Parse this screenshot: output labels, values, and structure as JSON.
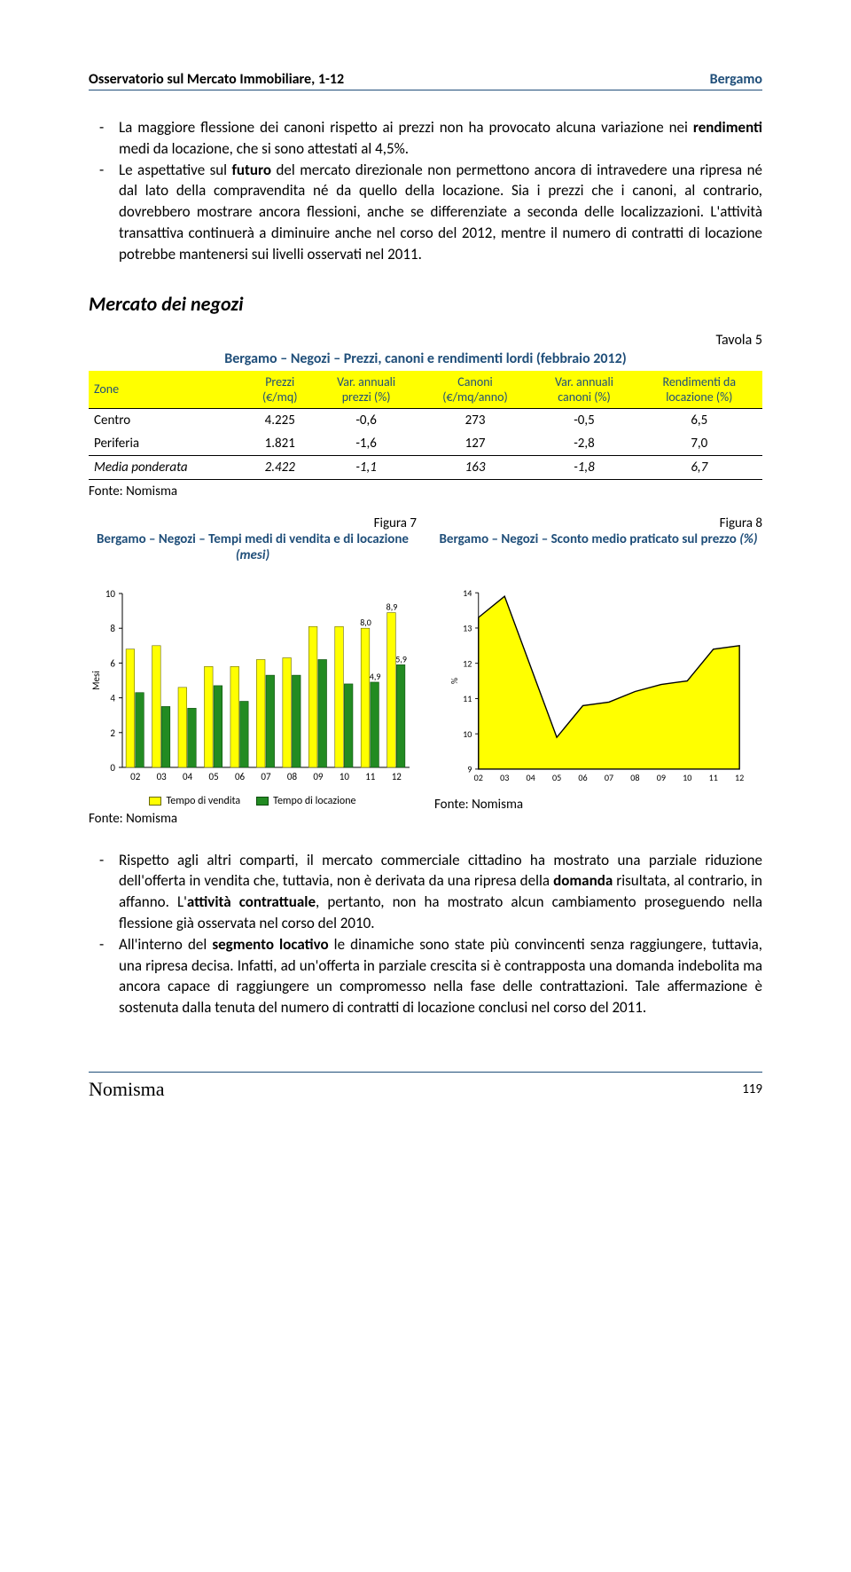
{
  "header": {
    "left": "Osservatorio sul Mercato Immobiliare, 1-12",
    "right": "Bergamo"
  },
  "para1_a": "La maggiore flessione dei canoni rispetto ai prezzi non ha provocato alcuna variazione nei ",
  "para1_b": "rendimenti",
  "para1_c": " medi da locazione, che si sono attestati al 4,5%.",
  "para2_a": "Le aspettative sul ",
  "para2_b": "futuro",
  "para2_c": " del mercato direzionale non permettono ancora di intravedere una ripresa né dal lato della compravendita né da quello della locazione. Sia i prezzi che i canoni, al contrario, dovrebbero mostrare ancora flessioni, anche se differenziate a seconda delle localizzazioni. L'attività transattiva continuerà a diminuire anche nel corso del 2012, mentre il numero di contratti di locazione potrebbe mantenersi sui livelli osservati nel 2011.",
  "section_title": "Mercato dei negozi",
  "tavola_label": "Tavola 5",
  "table_title": "Bergamo – Negozi – Prezzi, canoni e rendimenti lordi (febbraio 2012)",
  "table": {
    "headers": [
      {
        "l1": "Zone",
        "l2": ""
      },
      {
        "l1": "Prezzi",
        "l2": "(€/mq)"
      },
      {
        "l1": "Var. annuali",
        "l2": "prezzi (%)"
      },
      {
        "l1": "Canoni",
        "l2": "(€/mq/anno)"
      },
      {
        "l1": "Var. annuali",
        "l2": "canoni (%)"
      },
      {
        "l1": "Rendimenti da",
        "l2": "locazione (%)"
      }
    ],
    "rows": [
      [
        "Centro",
        "4.225",
        "-0,6",
        "273",
        "-0,5",
        "6,5"
      ],
      [
        "Periferia",
        "1.821",
        "-1,6",
        "127",
        "-2,8",
        "7,0"
      ],
      [
        "Media ponderata",
        "2.422",
        "-1,1",
        "163",
        "-1,8",
        "6,7"
      ]
    ]
  },
  "fonte": "Fonte: Nomisma",
  "fig7": {
    "label": "Figura 7",
    "title_a": "Bergamo – Negozi – Tempi medi di vendita e di locazione ",
    "title_b": "(mesi)",
    "type": "grouped-bar",
    "ylabel": "Mesi",
    "ylim": [
      0,
      10
    ],
    "ytick_step": 2,
    "categories": [
      "02",
      "03",
      "04",
      "05",
      "06",
      "07",
      "08",
      "09",
      "10",
      "11",
      "12"
    ],
    "series": [
      {
        "name": "Tempo di vendita",
        "color": "#ffff00",
        "border": "#6a6a00",
        "values": [
          6.8,
          7.0,
          4.6,
          5.8,
          5.8,
          6.2,
          6.3,
          8.1,
          8.1,
          8.0,
          8.9
        ]
      },
      {
        "name": "Tempo di locazione",
        "color": "#228b22",
        "border": "#0d4d0d",
        "values": [
          4.3,
          3.5,
          3.4,
          4.7,
          3.8,
          5.3,
          5.3,
          6.2,
          4.8,
          4.9,
          5.9
        ]
      }
    ],
    "annotations": [
      {
        "text": "8,0",
        "cat_idx": 9,
        "series": 0,
        "y": 8.0
      },
      {
        "text": "8,9",
        "cat_idx": 10,
        "series": 0,
        "y": 8.9
      },
      {
        "text": "4,9",
        "cat_idx": 9,
        "series": 1,
        "y": 4.9
      },
      {
        "text": "5,9",
        "cat_idx": 10,
        "series": 1,
        "y": 5.9
      }
    ],
    "axis_color": "#000",
    "tick_color": "#000",
    "label_fontsize": 11,
    "bar_group_width": 0.72
  },
  "fig8": {
    "label": "Figura 8",
    "title_a": "Bergamo – Negozi – Sconto medio praticato sul prezzo ",
    "title_b": "(%)",
    "type": "area",
    "ylabel": "%",
    "ylim": [
      9,
      14
    ],
    "ytick_step": 1,
    "categories": [
      "02",
      "03",
      "04",
      "05",
      "06",
      "07",
      "08",
      "09",
      "10",
      "11",
      "12"
    ],
    "values": [
      13.3,
      13.9,
      11.9,
      9.9,
      10.8,
      10.9,
      11.2,
      11.4,
      11.5,
      12.4,
      12.5
    ],
    "fill_color": "#ffff00",
    "line_color": "#000",
    "line_width": 1.5,
    "axis_color": "#000",
    "label_fontsize": 11
  },
  "para3_a": "Rispetto agli altri comparti, il mercato commerciale cittadino ha mostrato una parziale riduzione dell'offerta in vendita che, tuttavia, non è derivata da una ripresa della ",
  "para3_b": "domanda",
  "para3_c": " risultata, al contrario, in affanno. L'",
  "para3_d": "attività contrattuale",
  "para3_e": ", pertanto, non ha mostrato alcun cambiamento proseguendo nella flessione già osservata nel corso del 2010.",
  "para4_a": "All'interno del ",
  "para4_b": "segmento locativo",
  "para4_c": " le dinamiche sono state più convincenti senza raggiungere, tuttavia, una ripresa decisa. Infatti, ad un'offerta in parziale crescita si è contrapposta una domanda indebolita ma ancora capace di raggiungere un compromesso nella fase delle contrattazioni. Tale affermazione è sostenuta dalla tenuta del numero di contratti di locazione conclusi nel corso del 2011.",
  "footer": {
    "logo": "Nomisma",
    "page": "119"
  }
}
